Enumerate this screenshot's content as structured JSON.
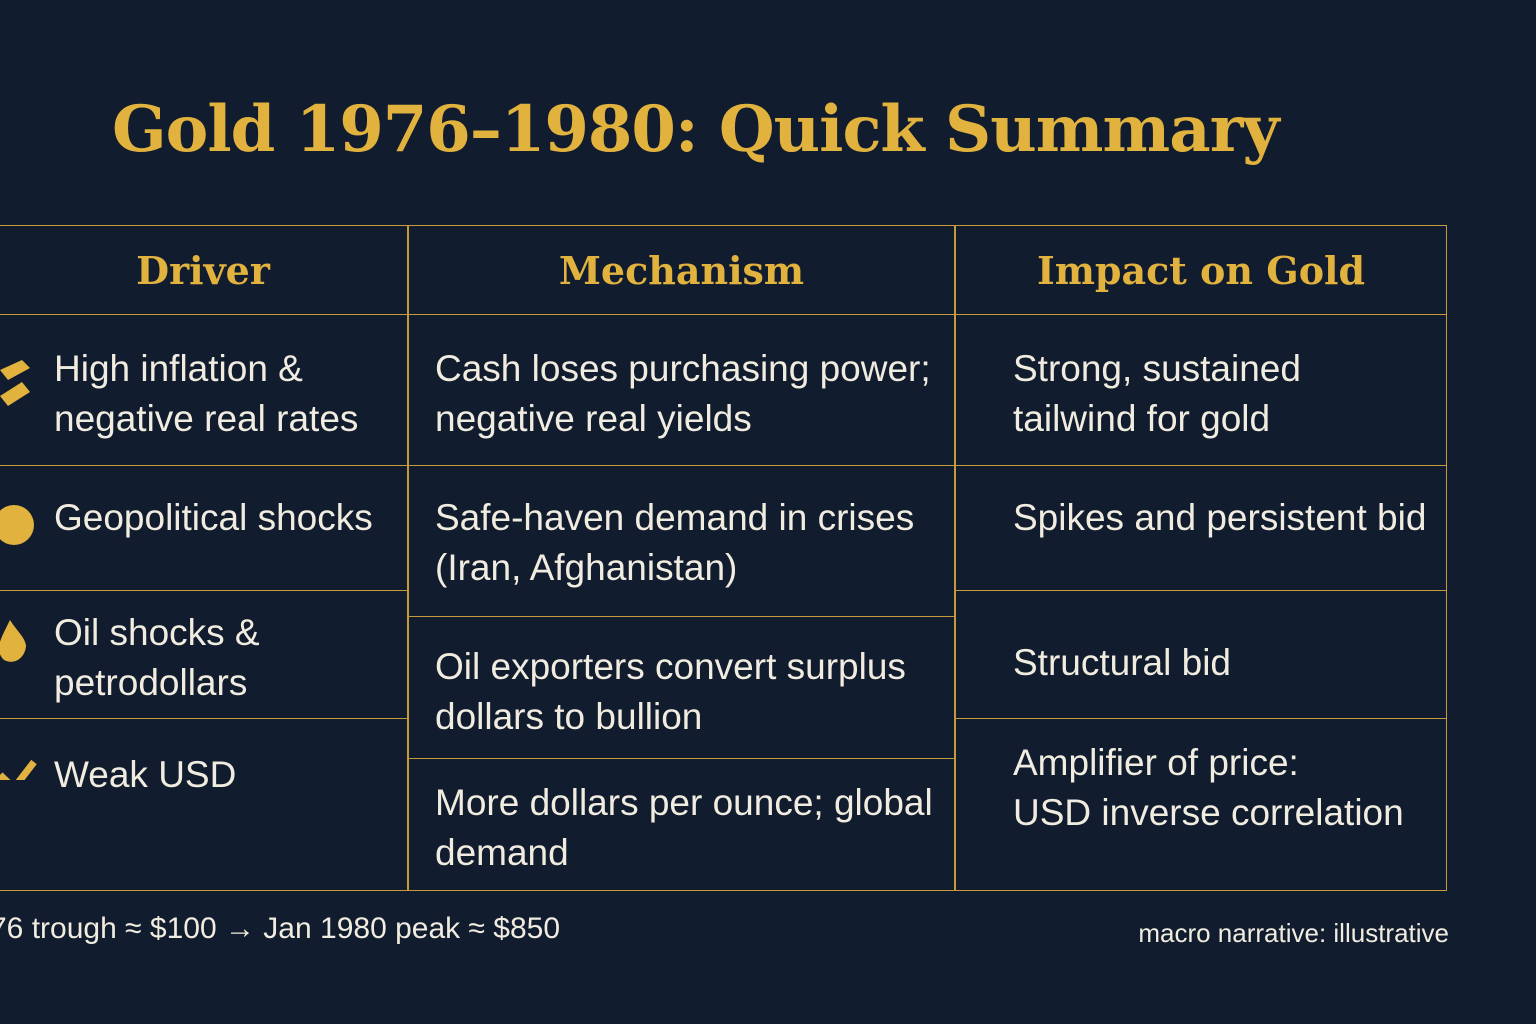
{
  "title": "Gold 1976–1980: Quick Summary",
  "table": {
    "headers": [
      "Driver",
      "Mechanism",
      "Impact on Gold"
    ],
    "rows": [
      [
        [
          "High inflation &",
          "negative real rates"
        ],
        [
          "Cash loses purchasing power;",
          "negative real yields"
        ],
        [
          "Strong, sustained",
          "tailwind for gold"
        ]
      ],
      [
        [
          "Geopolitical shocks"
        ],
        [
          "Safe-haven demand in crises",
          "(Iran, Afghanistan)"
        ],
        [
          "Spikes and persistent bid"
        ]
      ],
      [
        [
          "Oil shocks &",
          "petrodollars"
        ],
        [
          "Oil exporters convert surplus",
          "dollars to bullion"
        ],
        [
          "Structural bid"
        ]
      ],
      [
        [
          "Weak USD"
        ],
        [
          "More dollars per ounce; global",
          "demand"
        ],
        [
          "Amplifier of price:",
          "USD inverse correlation"
        ]
      ]
    ]
  },
  "footer": {
    "left": "76 trough ≈ $100 → Jan 1980 peak ≈ $850",
    "right": "macro narrative: illustrative"
  }
}
